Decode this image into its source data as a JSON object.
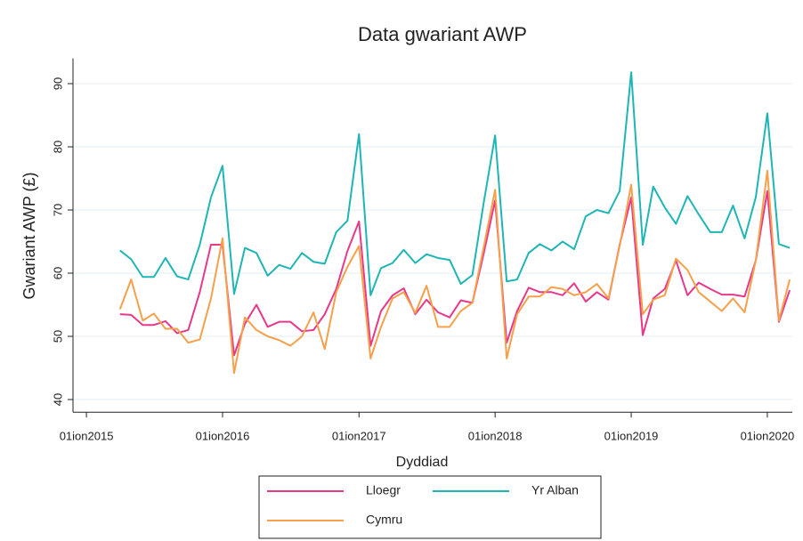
{
  "chart_data": {
    "type": "line",
    "title": "Data gwariant AWP",
    "x_label": "Dyddiad",
    "y_label": "Gwariant AWP (£)",
    "x": [
      "2015-04-01",
      "2015-05-01",
      "2015-06-01",
      "2015-07-01",
      "2015-08-01",
      "2015-09-01",
      "2015-10-01",
      "2015-11-01",
      "2015-12-01",
      "2016-01-01",
      "2016-02-01",
      "2016-03-01",
      "2016-04-01",
      "2016-05-01",
      "2016-06-01",
      "2016-07-01",
      "2016-08-01",
      "2016-09-01",
      "2016-10-01",
      "2016-11-01",
      "2016-12-01",
      "2017-01-01",
      "2017-02-01",
      "2017-03-01",
      "2017-04-01",
      "2017-05-01",
      "2017-06-01",
      "2017-07-01",
      "2017-08-01",
      "2017-09-01",
      "2017-10-01",
      "2017-11-01",
      "2017-12-01",
      "2018-01-01",
      "2018-02-01",
      "2018-03-01",
      "2018-04-01",
      "2018-05-01",
      "2018-06-01",
      "2018-07-01",
      "2018-08-01",
      "2018-09-01",
      "2018-10-01",
      "2018-11-01",
      "2018-12-01",
      "2019-01-01",
      "2019-02-01",
      "2019-03-01",
      "2019-04-01",
      "2019-05-01",
      "2019-06-01",
      "2019-07-01",
      "2019-08-01",
      "2019-09-01",
      "2019-10-01",
      "2019-11-01",
      "2019-12-01",
      "2020-01-01",
      "2020-02-01",
      "2020-03-01"
    ],
    "series": [
      {
        "name": "Lloegr",
        "color": "#e8388a",
        "values": [
          53.5,
          53.4,
          51.8,
          51.8,
          52.4,
          50.5,
          51.0,
          57.0,
          64.5,
          64.5,
          47.0,
          52.0,
          55.0,
          51.5,
          52.3,
          52.3,
          50.8,
          51.0,
          53.5,
          57.5,
          63.5,
          68.2,
          48.5,
          54.0,
          56.5,
          57.6,
          53.5,
          55.8,
          53.8,
          53.0,
          55.7,
          55.3,
          63.0,
          71.5,
          49.0,
          54.0,
          57.7,
          57.0,
          57.0,
          56.5,
          58.4,
          55.5,
          57.0,
          55.8,
          64.5,
          72.0,
          50.2,
          56.0,
          57.5,
          62.0,
          56.5,
          58.5,
          57.5,
          56.6,
          56.6,
          56.3,
          62.0,
          73.0,
          52.3,
          57.3
        ]
      },
      {
        "name": "Yr Alban",
        "color": "#1fb5b5",
        "values": [
          63.6,
          62.2,
          59.4,
          59.4,
          62.4,
          59.5,
          59.0,
          64.5,
          72.0,
          77.0,
          56.7,
          64.0,
          63.2,
          59.6,
          61.3,
          60.7,
          63.2,
          61.8,
          61.5,
          66.5,
          68.3,
          82.0,
          56.5,
          60.8,
          61.6,
          63.7,
          61.6,
          63.0,
          62.4,
          62.1,
          58.3,
          59.7,
          71.0,
          81.8,
          58.7,
          59.0,
          63.2,
          64.6,
          63.6,
          65.0,
          63.8,
          69.0,
          70.0,
          69.5,
          73.0,
          91.8,
          64.5,
          73.7,
          70.4,
          67.8,
          72.2,
          69.3,
          66.5,
          66.5,
          70.7,
          65.5,
          72.0,
          85.3,
          64.6,
          64.0
        ]
      },
      {
        "name": "Cymru",
        "color": "#f5a04a",
        "values": [
          54.3,
          59.0,
          52.5,
          53.6,
          51.2,
          51.2,
          49.0,
          49.5,
          56.0,
          65.5,
          44.2,
          53.0,
          51.0,
          50.0,
          49.4,
          48.5,
          50.0,
          53.8,
          48.0,
          57.0,
          61.0,
          64.3,
          46.5,
          51.5,
          56.0,
          57.0,
          53.7,
          58.0,
          51.5,
          51.5,
          54.0,
          55.3,
          64.0,
          73.2,
          46.5,
          53.5,
          56.3,
          56.3,
          57.8,
          57.5,
          56.5,
          57.0,
          58.3,
          56.0,
          64.3,
          74.0,
          53.5,
          55.8,
          56.5,
          62.3,
          60.5,
          57.0,
          55.5,
          54.0,
          56.0,
          53.8,
          62.0,
          76.2,
          52.5,
          59.0
        ]
      }
    ],
    "xlim": [
      "2014-11-26",
      "2020-03-08"
    ],
    "xticks": [
      {
        "value": "2015-01-01",
        "label": "01ion2015"
      },
      {
        "value": "2016-01-01",
        "label": "01ion2016"
      },
      {
        "value": "2017-01-01",
        "label": "01ion2017"
      },
      {
        "value": "2018-01-01",
        "label": "01ion2018"
      },
      {
        "value": "2019-01-01",
        "label": "01ion2019"
      },
      {
        "value": "2020-01-01",
        "label": "01ion2020"
      }
    ],
    "ylim": [
      38,
      94
    ],
    "yticks": [
      40,
      50,
      60,
      70,
      80,
      90
    ],
    "grid": true,
    "legend": "bottom"
  }
}
